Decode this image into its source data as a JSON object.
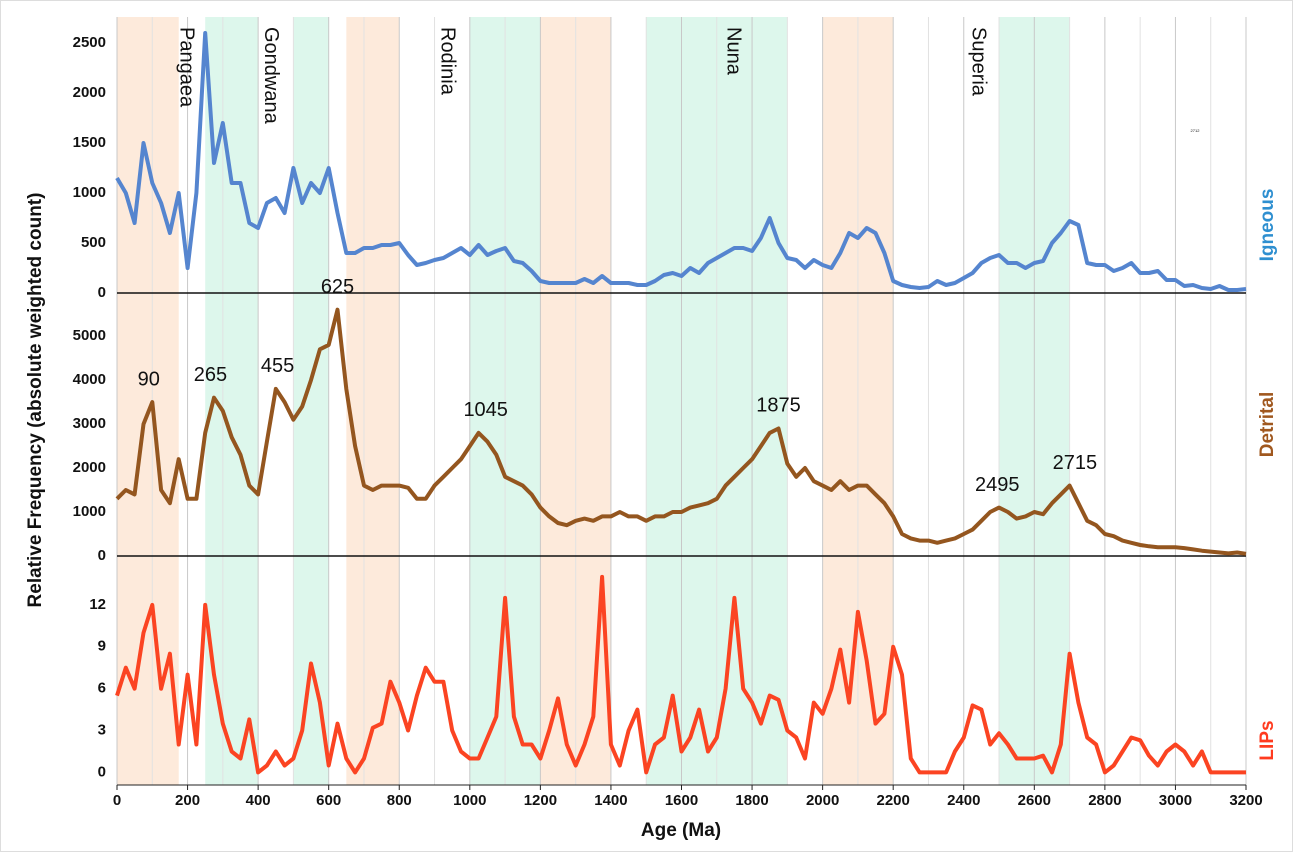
{
  "chart_data": {
    "type": "line",
    "ylabel": "Relative Frequency (absolute weighted count)",
    "xlabel": "Age (Ma)",
    "xlim": [
      0,
      3200
    ],
    "xticks": [
      0,
      200,
      400,
      600,
      800,
      1000,
      1200,
      1400,
      1600,
      1800,
      2000,
      2200,
      2400,
      2600,
      2800,
      3000,
      3200
    ],
    "note": "2712",
    "bands": [
      {
        "start": 0,
        "end": 175,
        "color": "#fdeadb"
      },
      {
        "start": 250,
        "end": 400,
        "color": "#ddf7ec"
      },
      {
        "start": 500,
        "end": 600,
        "color": "#ddf7ec"
      },
      {
        "start": 650,
        "end": 800,
        "color": "#fdeadb"
      },
      {
        "start": 1000,
        "end": 1200,
        "color": "#ddf7ec"
      },
      {
        "start": 1200,
        "end": 1400,
        "color": "#fdeadb"
      },
      {
        "start": 1500,
        "end": 1900,
        "color": "#ddf7ec"
      },
      {
        "start": 2000,
        "end": 2200,
        "color": "#fdeadb"
      },
      {
        "start": 2500,
        "end": 2700,
        "color": "#ddf7ec"
      }
    ],
    "supercontinents": [
      {
        "name": "Pangaea",
        "age": 195
      },
      {
        "name": "Gondwana",
        "age": 435
      },
      {
        "name": "Rodinia",
        "age": 935
      },
      {
        "name": "Nuna",
        "age": 1745
      },
      {
        "name": "Superia",
        "age": 2440
      }
    ],
    "x": [
      0,
      25,
      50,
      75,
      100,
      125,
      150,
      175,
      200,
      225,
      250,
      275,
      300,
      325,
      350,
      375,
      400,
      425,
      450,
      475,
      500,
      525,
      550,
      575,
      600,
      625,
      650,
      675,
      700,
      725,
      750,
      775,
      800,
      825,
      850,
      875,
      900,
      925,
      950,
      975,
      1000,
      1025,
      1050,
      1075,
      1100,
      1125,
      1150,
      1175,
      1200,
      1225,
      1250,
      1275,
      1300,
      1325,
      1350,
      1375,
      1400,
      1425,
      1450,
      1475,
      1500,
      1525,
      1550,
      1575,
      1600,
      1625,
      1650,
      1675,
      1700,
      1725,
      1750,
      1775,
      1800,
      1825,
      1850,
      1875,
      1900,
      1925,
      1950,
      1975,
      2000,
      2025,
      2050,
      2075,
      2100,
      2125,
      2150,
      2175,
      2200,
      2225,
      2250,
      2275,
      2300,
      2325,
      2350,
      2375,
      2400,
      2425,
      2450,
      2475,
      2500,
      2525,
      2550,
      2575,
      2600,
      2625,
      2650,
      2675,
      2700,
      2725,
      2750,
      2775,
      2800,
      2825,
      2850,
      2875,
      2900,
      2925,
      2950,
      2975,
      3000,
      3025,
      3050,
      3075,
      3100,
      3125,
      3150,
      3175,
      3200
    ],
    "series": [
      {
        "name": "Igneous",
        "color": "#5585cf",
        "label_color": "#2e8fd0",
        "ylim": [
          0,
          2760
        ],
        "yticks": [
          0,
          500,
          1000,
          1500,
          2000,
          2500
        ],
        "values": [
          1150,
          1000,
          700,
          1500,
          1100,
          900,
          600,
          1000,
          250,
          1000,
          2600,
          1300,
          1700,
          1100,
          1100,
          700,
          650,
          900,
          950,
          800,
          1250,
          900,
          1100,
          1000,
          1250,
          800,
          400,
          400,
          450,
          450,
          480,
          480,
          500,
          380,
          280,
          300,
          330,
          350,
          400,
          450,
          380,
          480,
          380,
          420,
          450,
          320,
          300,
          220,
          120,
          100,
          100,
          100,
          100,
          140,
          100,
          170,
          100,
          100,
          100,
          80,
          80,
          120,
          180,
          200,
          170,
          250,
          200,
          300,
          350,
          400,
          450,
          450,
          420,
          550,
          750,
          500,
          350,
          330,
          250,
          330,
          280,
          250,
          400,
          600,
          550,
          650,
          600,
          400,
          120,
          80,
          60,
          50,
          60,
          120,
          80,
          100,
          150,
          200,
          300,
          350,
          380,
          300,
          300,
          250,
          300,
          320,
          500,
          600,
          720,
          680,
          300,
          280,
          280,
          220,
          250,
          300,
          200,
          200,
          220,
          130,
          130,
          70,
          80,
          50,
          40,
          70,
          30,
          30,
          40
        ]
      },
      {
        "name": "Detrital",
        "color": "#94561f",
        "label_color": "#a0581f",
        "ylim": [
          0,
          5980
        ],
        "yticks": [
          0,
          1000,
          2000,
          3000,
          4000,
          5000
        ],
        "peaks": [
          90,
          265,
          455,
          625,
          1045,
          1875,
          2495,
          2715
        ],
        "values": [
          1300,
          1500,
          1400,
          3000,
          3500,
          1500,
          1200,
          2200,
          1300,
          1300,
          2800,
          3600,
          3300,
          2700,
          2300,
          1600,
          1400,
          2600,
          3800,
          3500,
          3100,
          3400,
          4000,
          4700,
          4800,
          5600,
          3800,
          2500,
          1600,
          1500,
          1600,
          1600,
          1600,
          1550,
          1300,
          1300,
          1600,
          1800,
          2000,
          2200,
          2500,
          2800,
          2600,
          2300,
          1800,
          1700,
          1600,
          1400,
          1100,
          900,
          750,
          700,
          800,
          850,
          800,
          900,
          900,
          1000,
          900,
          900,
          800,
          900,
          900,
          1000,
          1000,
          1100,
          1150,
          1200,
          1300,
          1600,
          1800,
          2000,
          2200,
          2500,
          2800,
          2900,
          2100,
          1800,
          2000,
          1700,
          1600,
          1500,
          1700,
          1500,
          1600,
          1600,
          1400,
          1200,
          900,
          500,
          400,
          350,
          350,
          300,
          350,
          400,
          500,
          600,
          800,
          1000,
          1100,
          1000,
          850,
          900,
          1000,
          950,
          1200,
          1400,
          1600,
          1200,
          800,
          700,
          500,
          450,
          350,
          300,
          250,
          220,
          200,
          200,
          200,
          180,
          150,
          120,
          100,
          80,
          60,
          80,
          50
        ]
      },
      {
        "name": "LIPs",
        "color": "#fb4422",
        "label_color": "#ff3b1f",
        "ylim": [
          -0.9,
          15.5
        ],
        "yticks": [
          0,
          3,
          6,
          9,
          12
        ],
        "values": [
          5.5,
          7.5,
          6,
          10,
          12,
          6,
          8.5,
          2,
          7,
          2,
          12,
          7,
          3.5,
          1.5,
          1,
          3.8,
          0,
          0.5,
          1.5,
          0.5,
          1,
          3,
          7.8,
          5,
          0.5,
          3.5,
          1,
          0,
          1,
          3.2,
          3.5,
          6.5,
          5,
          3,
          5.5,
          7.5,
          6.5,
          6.5,
          3,
          1.5,
          1,
          1,
          2.5,
          4,
          12.5,
          4,
          2,
          2,
          1,
          3,
          5.3,
          2,
          0.5,
          2,
          4,
          14,
          2,
          0.5,
          3,
          4.5,
          0,
          2,
          2.5,
          5.5,
          1.5,
          2.5,
          4.5,
          1.5,
          2.5,
          6,
          12.5,
          6,
          5,
          3.5,
          5.5,
          5.2,
          3,
          2.5,
          1,
          5,
          4.2,
          6,
          8.8,
          5,
          11.5,
          8,
          3.5,
          4.2,
          9,
          7,
          1,
          0,
          0,
          0,
          0,
          1.5,
          2.5,
          4.8,
          4.5,
          2,
          2.8,
          2,
          1,
          1,
          1,
          1.2,
          0,
          2,
          8.5,
          5,
          2.5,
          2,
          0,
          0.5,
          1.5,
          2.5,
          2.3,
          1.2,
          0.5,
          1.5,
          2,
          1.5,
          0.5,
          1.5,
          0,
          0,
          0,
          0,
          0
        ]
      }
    ]
  }
}
